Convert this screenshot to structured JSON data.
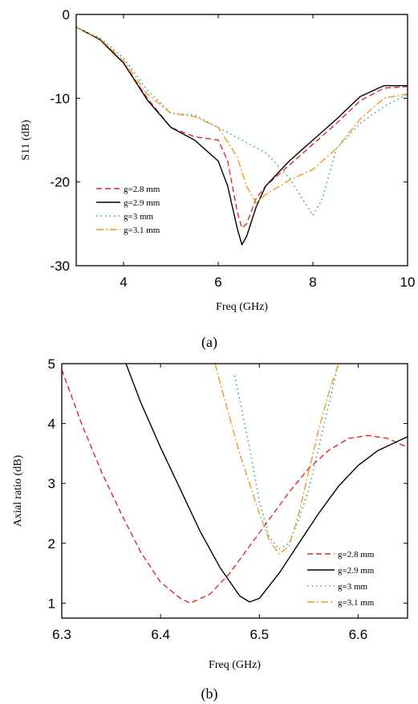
{
  "chart_data": [
    {
      "type": "line",
      "caption": "(a)",
      "xlabel": "Freq (GHz)",
      "ylabel": "S11 (dB)",
      "xlim": [
        3,
        10
      ],
      "ylim": [
        -30,
        0
      ],
      "xticks": [
        "4",
        "6",
        "8",
        "10"
      ],
      "yticks": [
        "0",
        "-10",
        "-20",
        "-30"
      ],
      "legend_position": "bottom-left",
      "series": [
        {
          "name": "g=2.8 mm",
          "color": "#e8262b",
          "dash": "dashed",
          "x": [
            3,
            3.5,
            4,
            4.5,
            5,
            5.5,
            6,
            6.2,
            6.4,
            6.5,
            6.6,
            6.8,
            7,
            7.5,
            8,
            8.5,
            9,
            9.5,
            10
          ],
          "y": [
            -1.5,
            -3.0,
            -5.8,
            -10.0,
            -13.5,
            -14.6,
            -15.0,
            -17.5,
            -23.5,
            -25.5,
            -25.0,
            -22.0,
            -20.5,
            -18.0,
            -15.5,
            -13.0,
            -10.3,
            -8.8,
            -8.6
          ]
        },
        {
          "name": "g=2.9 mm",
          "color": "#000000",
          "dash": "solid",
          "x": [
            3,
            3.5,
            4,
            4.5,
            5,
            5.5,
            6,
            6.2,
            6.4,
            6.5,
            6.6,
            6.8,
            7,
            7.5,
            8,
            8.5,
            9,
            9.5,
            10
          ],
          "y": [
            -1.5,
            -3.0,
            -5.8,
            -10.2,
            -13.5,
            -15.0,
            -17.5,
            -20.5,
            -25.5,
            -27.5,
            -26.5,
            -23.0,
            -20.5,
            -17.5,
            -15.0,
            -12.5,
            -9.8,
            -8.5,
            -8.5
          ]
        },
        {
          "name": "g=3 mm",
          "color": "#2aa7a7",
          "dash": "dotted",
          "x": [
            3,
            3.5,
            4,
            4.5,
            5,
            5.5,
            6,
            6.5,
            7,
            7.5,
            8,
            8.2,
            8.5,
            9,
            9.5,
            10
          ],
          "y": [
            -1.5,
            -2.8,
            -5.2,
            -9.0,
            -11.8,
            -12.0,
            -13.5,
            -15.0,
            -16.5,
            -19.5,
            -24.0,
            -22.0,
            -16.0,
            -13.0,
            -11.0,
            -9.5
          ]
        },
        {
          "name": "g=3.1 mm",
          "color": "#f39a1e",
          "dash": "dashdot",
          "x": [
            3,
            3.5,
            4,
            4.5,
            5,
            5.5,
            6,
            6.4,
            6.6,
            6.8,
            7,
            7.5,
            8,
            8.5,
            9,
            9.5,
            10
          ],
          "y": [
            -1.5,
            -2.9,
            -5.5,
            -9.5,
            -11.8,
            -12.2,
            -13.5,
            -17.0,
            -20.5,
            -22.5,
            -21.5,
            -19.8,
            -18.5,
            -16.0,
            -12.5,
            -10.0,
            -9.5
          ]
        }
      ]
    },
    {
      "type": "line",
      "caption": "(b)",
      "xlabel": "Freq (GHz)",
      "ylabel": "Axial ratio (dB)",
      "xlim": [
        6.3,
        6.65
      ],
      "ylim": [
        0.75,
        5
      ],
      "xticks": [
        "6.3",
        "6.4",
        "6.5",
        "6.6"
      ],
      "yticks": [
        "1",
        "2",
        "3",
        "4",
        "5"
      ],
      "legend_position": "bottom-right",
      "series": [
        {
          "name": "g=2.8 mm",
          "color": "#e8262b",
          "dash": "dashed",
          "x": [
            6.3,
            6.32,
            6.34,
            6.36,
            6.38,
            6.4,
            6.42,
            6.43,
            6.45,
            6.47,
            6.49,
            6.51,
            6.53,
            6.55,
            6.57,
            6.59,
            6.61,
            6.63,
            6.65
          ],
          "y": [
            4.9,
            4.0,
            3.2,
            2.5,
            1.85,
            1.35,
            1.08,
            1.0,
            1.15,
            1.5,
            1.95,
            2.4,
            2.85,
            3.25,
            3.55,
            3.75,
            3.8,
            3.75,
            3.6
          ]
        },
        {
          "name": "g=2.9 mm",
          "color": "#000000",
          "dash": "solid",
          "x": [
            6.365,
            6.38,
            6.4,
            6.42,
            6.44,
            6.46,
            6.48,
            6.49,
            6.5,
            6.52,
            6.54,
            6.56,
            6.58,
            6.6,
            6.62,
            6.65
          ],
          "y": [
            5.0,
            4.35,
            3.6,
            2.9,
            2.2,
            1.6,
            1.12,
            1.02,
            1.08,
            1.5,
            2.0,
            2.5,
            2.95,
            3.3,
            3.55,
            3.78
          ]
        },
        {
          "name": "g=3 mm",
          "color": "#2aa7a7",
          "dash": "dotted",
          "x": [
            6.475,
            6.48,
            6.49,
            6.5,
            6.51,
            6.52,
            6.53,
            6.54,
            6.55,
            6.56,
            6.57,
            6.58
          ],
          "y": [
            4.8,
            4.4,
            3.6,
            2.7,
            2.1,
            1.9,
            2.0,
            2.4,
            2.9,
            3.6,
            4.3,
            5.0
          ]
        },
        {
          "name": "g=3.1 mm",
          "color": "#f39a1e",
          "dash": "dashdot",
          "x": [
            6.455,
            6.46,
            6.47,
            6.48,
            6.49,
            6.5,
            6.51,
            6.52,
            6.53,
            6.54,
            6.55,
            6.56,
            6.57,
            6.58
          ],
          "y": [
            5.0,
            4.7,
            4.1,
            3.5,
            3.0,
            2.5,
            2.05,
            1.82,
            1.95,
            2.5,
            3.2,
            3.9,
            4.5,
            5.0
          ]
        }
      ]
    }
  ]
}
